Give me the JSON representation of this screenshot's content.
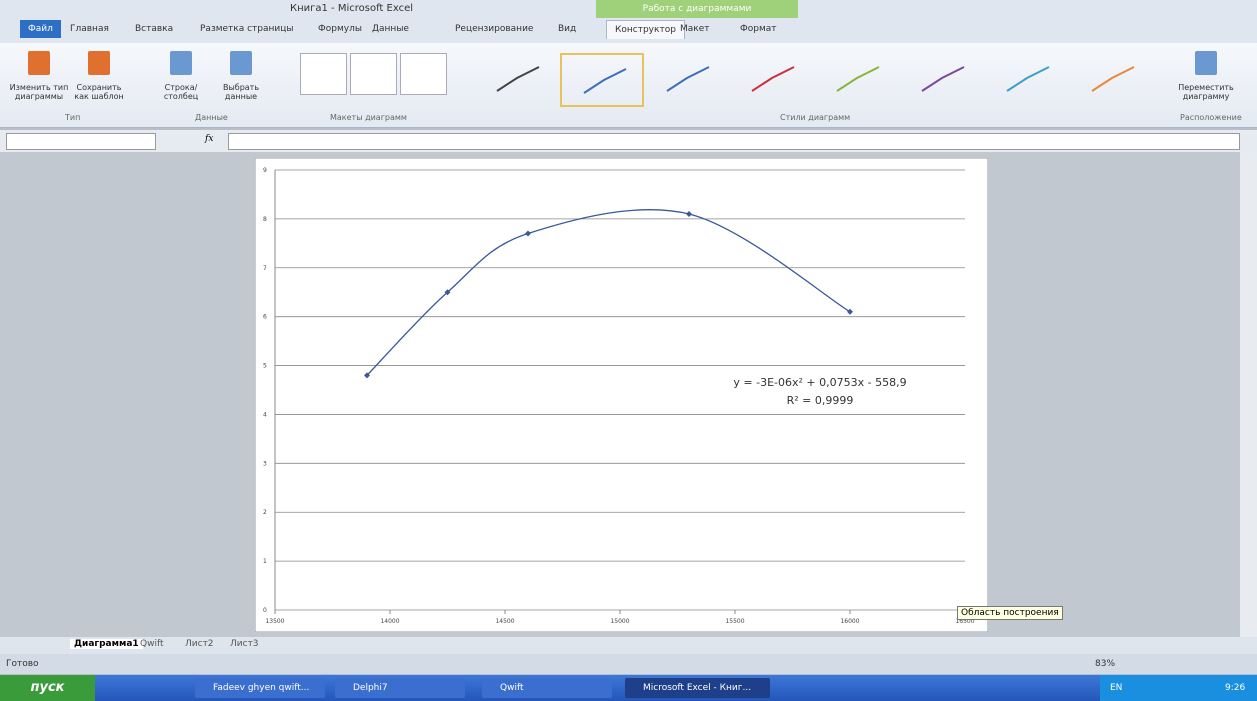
{
  "window": {
    "title": "Книга1 - Microsoft Excel",
    "context_tab": "Работа с диаграммами"
  },
  "tabs": [
    "Файл",
    "Главная",
    "Вставка",
    "Разметка страницы",
    "Формулы",
    "Данные",
    "Рецензирование",
    "Вид",
    "Конструктор",
    "Макет",
    "Формат"
  ],
  "ribbon": {
    "buttons": [
      "Изменить тип диаграммы",
      "Сохранить как шаблон",
      "Строка/столбец",
      "Выбрать данные",
      "Переместить диаграмму"
    ],
    "groups": [
      "Тип",
      "Данные",
      "Макеты диаграмм",
      "Стили диаграмм",
      "Расположение"
    ]
  },
  "formula_bar": {
    "fx": "fx"
  },
  "sheets": [
    "Диаграмма1",
    "Qwift",
    "Лист2",
    "Лист3"
  ],
  "status": {
    "ready": "Готово",
    "zoom": "83%"
  },
  "tooltip": "Область построения",
  "taskbar": {
    "start": "пуск",
    "items": [
      "Fadeev ghyen qwift...",
      "Delphi7",
      "Qwift",
      "Microsoft Excel - Книг..."
    ],
    "lang": "EN",
    "time": "9:26"
  },
  "chart_data": {
    "type": "line",
    "x": [
      13900,
      14250,
      14600,
      15300,
      16000
    ],
    "series": [
      {
        "color": "#3b5998",
        "values": [
          4.8,
          6.5,
          7.7,
          8.1,
          6.1
        ]
      }
    ],
    "xlim": [
      13500,
      16500
    ],
    "xticks": [
      13500,
      14000,
      14500,
      15000,
      15500,
      16000,
      16500
    ],
    "ylim": [
      0,
      9
    ],
    "yticks": [
      0,
      1,
      2,
      3,
      4,
      5,
      6,
      7,
      8,
      9
    ],
    "grid": true,
    "annotations": [
      "y = -3E-06x² + 0,0753x - 558,9",
      "R² = 0,9999"
    ]
  }
}
